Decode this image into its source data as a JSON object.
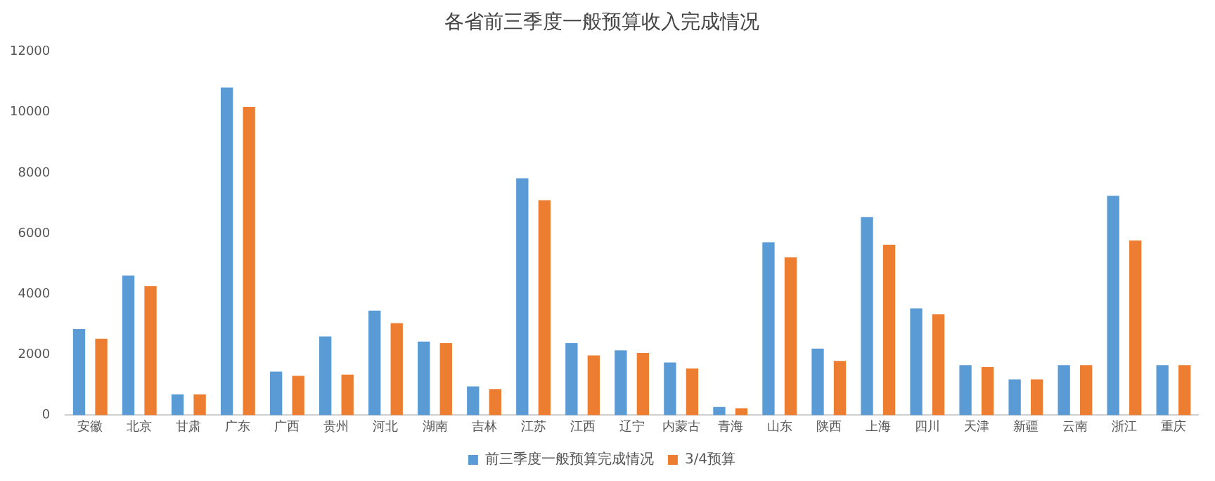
{
  "chart_data": {
    "type": "bar",
    "title": "各省前三季度一般预算收入完成情况",
    "categories": [
      "安徽",
      "北京",
      "甘肃",
      "广东",
      "广西",
      "贵州",
      "河北",
      "湖南",
      "吉林",
      "江苏",
      "江西",
      "辽宁",
      "内蒙古",
      "青海",
      "山东",
      "陕西",
      "上海",
      "四川",
      "天津",
      "新疆",
      "云南",
      "浙江",
      "重庆"
    ],
    "series": [
      {
        "name": "前三季度一般预算完成情况",
        "color": "#5b9bd5",
        "values": [
          2840,
          4610,
          690,
          10820,
          1440,
          2600,
          3450,
          2430,
          950,
          7820,
          2380,
          2140,
          1740,
          270,
          5710,
          2200,
          6540,
          3530,
          1650,
          1180,
          1650,
          7240,
          1650
        ]
      },
      {
        "name": "3/4预算",
        "color": "#ed7d31",
        "values": [
          2520,
          4260,
          690,
          10180,
          1300,
          1340,
          3040,
          2380,
          860,
          7100,
          1970,
          2050,
          1540,
          230,
          5210,
          1790,
          5630,
          3330,
          1590,
          1180,
          1650,
          5770,
          1650
        ]
      }
    ],
    "ylim": [
      0,
      12000
    ],
    "yticks": [
      0,
      2000,
      4000,
      6000,
      8000,
      10000,
      12000
    ],
    "grid": false,
    "legend": "bottom"
  }
}
